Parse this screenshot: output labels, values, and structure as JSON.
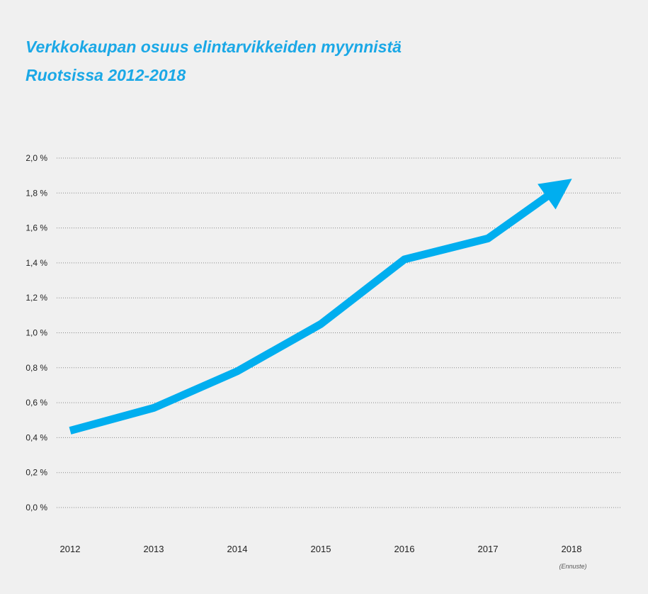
{
  "title_lines": [
    "Verkkokaupan osuus elintarvikkeiden myynnistä",
    "Ruotsissa 2012-2018"
  ],
  "colors": {
    "title": "#1ba8e6",
    "line": "#00aeef",
    "text": "#222222",
    "grid": "#888888",
    "note": "#555555",
    "background": "#f0f0f0"
  },
  "chart_data": {
    "type": "line",
    "title": "Verkkokaupan osuus elintarvikkeiden myynnistä Ruotsissa 2012-2018",
    "categories": [
      "2012",
      "2013",
      "2014",
      "2015",
      "2016",
      "2017",
      "2018"
    ],
    "series": [
      {
        "values": [
          0.44,
          0.57,
          0.78,
          1.05,
          1.42,
          1.54,
          1.88
        ]
      }
    ],
    "ylim": [
      0,
      2.0
    ],
    "yticks": [
      0.0,
      0.2,
      0.4,
      0.6,
      0.8,
      1.0,
      1.2,
      1.4,
      1.6,
      1.8,
      2.0
    ],
    "ytick_labels": [
      "0,0 %",
      "0,2 %",
      "0,4 %",
      "0,6 %",
      "0,8 %",
      "1,0 %",
      "1,2 %",
      "1,4 %",
      "1,6 %",
      "1,8 %",
      "2,0 %"
    ],
    "grid": true,
    "grid_style": "dotted",
    "line_end": "arrow",
    "annotation": {
      "category": "2018",
      "text": "(Ennuste)"
    }
  }
}
